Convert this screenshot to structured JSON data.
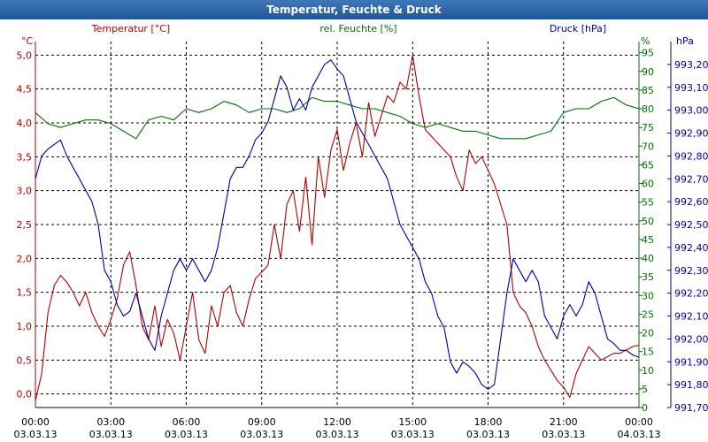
{
  "chart_data": {
    "type": "line",
    "title": "Temperatur, Feuchte & Druck",
    "colors": {
      "temperature": "#b00000",
      "humidity": "#007000",
      "pressure": "#0000a0",
      "grid": "#000000"
    },
    "axes": {
      "temperature": {
        "series_label": "Temperatur [°C]",
        "unit": "°C",
        "min": -0.2,
        "max": 5.2,
        "ticks": [
          "0,0",
          "0,5",
          "1,0",
          "1,5",
          "2,0",
          "2,5",
          "3,0",
          "3,5",
          "4,0",
          "4,5",
          "5,0"
        ]
      },
      "humidity": {
        "series_label": "rel. Feuchte [%]",
        "unit": "%",
        "min": 0,
        "max": 98,
        "ticks": [
          "0",
          "5",
          "10",
          "15",
          "20",
          "25",
          "30",
          "35",
          "40",
          "45",
          "50",
          "55",
          "60",
          "65",
          "70",
          "75",
          "80",
          "85",
          "90",
          "95"
        ]
      },
      "pressure": {
        "series_label": "Druck [hPa]",
        "unit": "hPa",
        "min": 991.7,
        "max": 993.3,
        "ticks": [
          "991,70",
          "991,80",
          "991,90",
          "992,00",
          "992,10",
          "992,20",
          "992,30",
          "992,40",
          "992,50",
          "992,60",
          "992,70",
          "992,80",
          "992,90",
          "993,00",
          "993,10",
          "993,20"
        ]
      }
    },
    "x_range_hours": [
      0,
      24
    ],
    "x_ticks": [
      {
        "time": "00:00",
        "date": "03.03.13"
      },
      {
        "time": "03:00",
        "date": "03.03.13"
      },
      {
        "time": "06:00",
        "date": "03.03.13"
      },
      {
        "time": "09:00",
        "date": "03.03.13"
      },
      {
        "time": "12:00",
        "date": "03.03.13"
      },
      {
        "time": "15:00",
        "date": "03.03.13"
      },
      {
        "time": "18:00",
        "date": "03.03.13"
      },
      {
        "time": "21:00",
        "date": "03.03.13"
      },
      {
        "time": "00:00",
        "date": "04.03.13"
      }
    ],
    "grid": true,
    "series": [
      {
        "name": "Temperatur [°C]",
        "axis": "temperature",
        "hours": [
          0,
          0.25,
          0.5,
          0.75,
          1,
          1.25,
          1.5,
          1.75,
          2,
          2.25,
          2.5,
          2.75,
          3,
          3.25,
          3.5,
          3.75,
          4,
          4.25,
          4.5,
          4.75,
          5,
          5.25,
          5.5,
          5.75,
          6,
          6.25,
          6.5,
          6.75,
          7,
          7.25,
          7.5,
          7.75,
          8,
          8.25,
          8.5,
          8.75,
          9,
          9.25,
          9.5,
          9.75,
          10,
          10.25,
          10.5,
          10.75,
          11,
          11.25,
          11.5,
          11.75,
          12,
          12.25,
          12.5,
          12.75,
          13,
          13.25,
          13.5,
          13.75,
          14,
          14.25,
          14.5,
          14.75,
          15,
          15.25,
          15.5,
          15.75,
          16,
          16.25,
          16.5,
          16.75,
          17,
          17.25,
          17.5,
          17.75,
          18,
          18.25,
          18.5,
          18.75,
          19,
          19.25,
          19.5,
          19.75,
          20,
          20.25,
          20.5,
          20.75,
          21,
          21.25,
          21.5,
          21.75,
          22,
          22.25,
          22.5,
          22.75,
          23,
          23.25,
          23.5,
          23.75,
          24
        ],
        "values": [
          -0.1,
          0.3,
          1.2,
          1.6,
          1.75,
          1.65,
          1.5,
          1.3,
          1.5,
          1.2,
          1.0,
          0.85,
          1.1,
          1.4,
          1.9,
          2.1,
          1.6,
          1.0,
          0.8,
          1.3,
          0.7,
          1.1,
          0.9,
          0.5,
          1.0,
          1.5,
          0.8,
          0.6,
          1.3,
          1.0,
          1.5,
          1.6,
          1.2,
          1.0,
          1.4,
          1.7,
          1.8,
          1.9,
          2.5,
          2.0,
          2.8,
          3.0,
          2.4,
          3.2,
          2.2,
          3.5,
          2.9,
          3.6,
          3.9,
          3.3,
          3.7,
          4.0,
          3.5,
          4.3,
          3.8,
          4.1,
          4.4,
          4.3,
          4.6,
          4.5,
          5.0,
          4.4,
          3.9,
          3.8,
          3.7,
          3.6,
          3.5,
          3.2,
          3.0,
          3.6,
          3.4,
          3.5,
          3.3,
          3.1,
          2.8,
          2.5,
          1.5,
          1.3,
          1.2,
          1.0,
          0.7,
          0.5,
          0.35,
          0.2,
          0.1,
          -0.05,
          0.3,
          0.5,
          0.7,
          0.6,
          0.5,
          0.55,
          0.6,
          0.6,
          0.65,
          0.7,
          0.72
        ],
        "plot_hours_override": null
      },
      {
        "name": "rel. Feuchte [%]",
        "axis": "humidity",
        "hours": [
          0,
          0.5,
          1,
          1.5,
          2,
          2.5,
          3,
          3.5,
          4,
          4.5,
          5,
          5.5,
          6,
          6.5,
          7,
          7.5,
          8,
          8.5,
          9,
          9.5,
          10,
          10.5,
          11,
          11.5,
          12,
          12.5,
          13,
          13.5,
          14,
          14.5,
          15,
          15.5,
          16,
          16.5,
          17,
          17.5,
          18,
          18.5,
          19,
          19.5,
          20,
          20.5,
          21,
          21.5,
          22,
          22.5,
          23,
          23.5,
          24
        ],
        "values": [
          79,
          76,
          75,
          76,
          77,
          77,
          76,
          74,
          72,
          77,
          78,
          77,
          80,
          79,
          80,
          82,
          81,
          79,
          80,
          80,
          79,
          80,
          83,
          82,
          82,
          81,
          80,
          80,
          79,
          78,
          76,
          75,
          76,
          75,
          74,
          74,
          73,
          72,
          72,
          72,
          73,
          74,
          79,
          80,
          80,
          82,
          83,
          81,
          80
        ]
      },
      {
        "name": "Druck [hPa]",
        "axis": "pressure",
        "hours": [
          0,
          0.25,
          0.5,
          0.75,
          1,
          1.25,
          1.5,
          1.75,
          2,
          2.25,
          2.5,
          2.75,
          3,
          3.25,
          3.5,
          3.75,
          4,
          4.25,
          4.5,
          4.75,
          5,
          5.25,
          5.5,
          5.75,
          6,
          6.25,
          6.5,
          6.75,
          7,
          7.25,
          7.5,
          7.75,
          8,
          8.25,
          8.5,
          8.75,
          9,
          9.25,
          9.5,
          9.75,
          10,
          10.25,
          10.5,
          10.75,
          11,
          11.25,
          11.5,
          11.75,
          12,
          12.25,
          12.5,
          12.75,
          13,
          13.25,
          13.5,
          13.75,
          14,
          14.25,
          14.5,
          14.75,
          15,
          15.25,
          15.5,
          15.75,
          16,
          16.25,
          16.5,
          16.75,
          17,
          17.25,
          17.5,
          17.75,
          18,
          18.25,
          18.5,
          18.75,
          19,
          19.25,
          19.5,
          19.75,
          20,
          20.25,
          20.5,
          20.75,
          21,
          21.25,
          21.5,
          21.75,
          22,
          22.25,
          22.5,
          22.75,
          23,
          23.25,
          23.5,
          23.75,
          24
        ],
        "values": [
          992.7,
          992.8,
          992.83,
          992.85,
          992.87,
          992.8,
          992.75,
          992.7,
          992.65,
          992.6,
          992.5,
          992.3,
          992.25,
          992.15,
          992.1,
          992.12,
          992.2,
          992.1,
          992.0,
          991.95,
          992.1,
          992.2,
          992.3,
          992.35,
          992.3,
          992.35,
          992.3,
          992.25,
          992.3,
          992.4,
          992.55,
          992.7,
          992.75,
          992.75,
          992.8,
          992.87,
          992.9,
          992.95,
          993.05,
          993.15,
          993.1,
          993.0,
          993.05,
          993.0,
          993.1,
          993.15,
          993.2,
          993.22,
          993.18,
          993.15,
          993.05,
          992.95,
          992.9,
          992.85,
          992.8,
          992.75,
          992.7,
          992.6,
          992.5,
          992.45,
          992.4,
          992.35,
          992.25,
          992.2,
          992.1,
          992.05,
          991.9,
          991.85,
          991.9,
          991.88,
          991.85,
          991.8,
          991.78,
          991.8,
          992.0,
          992.2,
          992.35,
          992.3,
          992.25,
          992.3,
          992.25,
          992.1,
          992.05,
          992.0,
          992.1,
          992.15,
          992.1,
          992.15,
          992.25,
          992.2,
          992.1,
          992.0,
          991.98,
          991.95,
          991.95,
          991.93,
          991.92
        ]
      }
    ]
  }
}
